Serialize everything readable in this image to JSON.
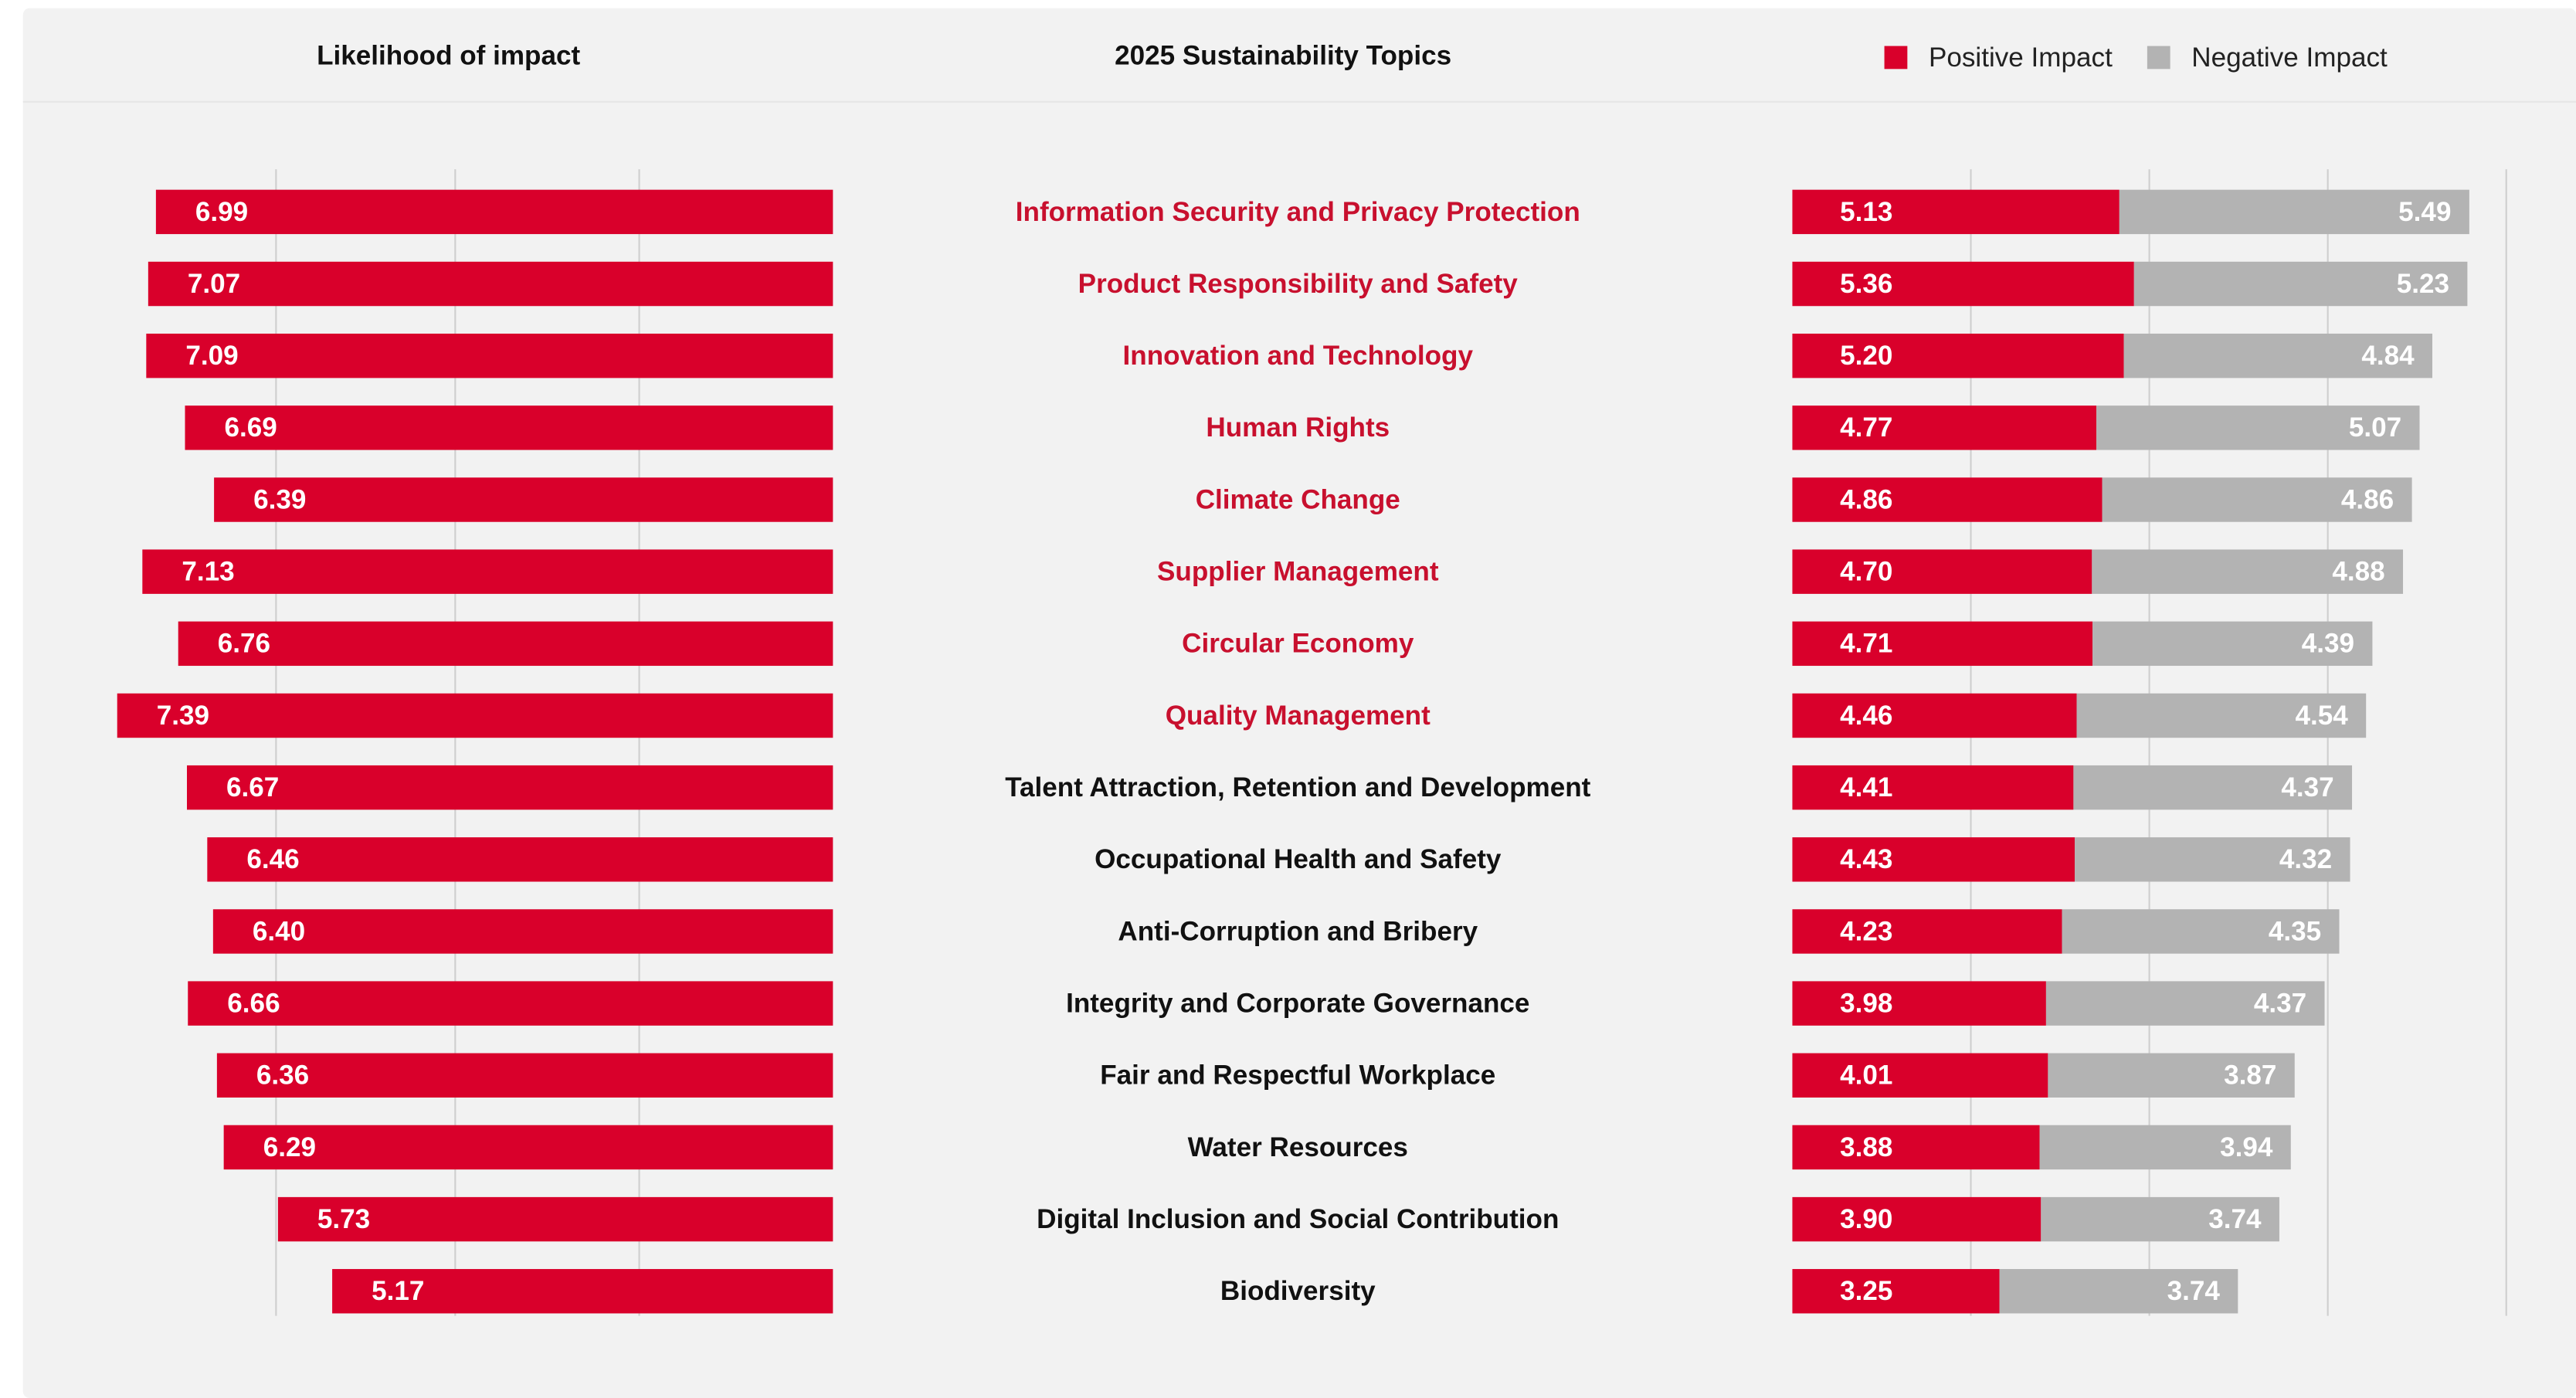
{
  "chart_data": [
    {
      "type": "bar",
      "orientation": "horizontal",
      "direction": "reversed",
      "title": "Likelihood of impact",
      "category_axis_label": "2025 Sustainability Topics",
      "categories": [
        "Information Security and Privacy Protection",
        "Product Responsibility and Safety",
        "Innovation and Technology",
        "Human Rights",
        "Climate Change",
        "Supplier Management",
        "Circular Economy",
        "Quality Management",
        "Talent Attraction, Retention and Development",
        "Occupational Health and Safety",
        "Anti-Corruption and Bribery",
        "Integrity and Corporate Governance",
        "Fair and Respectful Workplace",
        "Water Resources",
        "Digital Inclusion and Social Contribution",
        "Biodiversity"
      ],
      "category_colors": [
        "#c8102e",
        "#c8102e",
        "#c8102e",
        "#c8102e",
        "#c8102e",
        "#c8102e",
        "#c8102e",
        "#c8102e",
        "#111111",
        "#111111",
        "#111111",
        "#111111",
        "#111111",
        "#111111",
        "#111111",
        "#111111"
      ],
      "values": [
        6.99,
        7.07,
        7.09,
        6.69,
        6.39,
        7.13,
        6.76,
        7.39,
        6.67,
        6.46,
        6.4,
        6.66,
        6.36,
        6.29,
        5.73,
        5.17
      ],
      "value_labels": [
        "6.99",
        "7.07",
        "7.09",
        "6.69",
        "6.39",
        "7.13",
        "6.76",
        "7.39",
        "6.67",
        "6.46",
        "6.40",
        "6.66",
        "6.36",
        "6.29",
        "5.73",
        "5.17"
      ],
      "color": "#d9002b",
      "xlim": [
        0,
        8.6
      ],
      "xticks": [
        2,
        3.9,
        5.75
      ],
      "grid": true
    },
    {
      "type": "stacked_bar",
      "orientation": "horizontal",
      "series": [
        {
          "name": "Positive Impact",
          "color": "#d9002b",
          "values": [
            5.13,
            5.36,
            5.2,
            4.77,
            4.86,
            4.7,
            4.71,
            4.46,
            4.41,
            4.43,
            4.23,
            3.98,
            4.01,
            3.88,
            3.9,
            3.25
          ],
          "value_labels": [
            "5.13",
            "5.36",
            "5.20",
            "4.77",
            "4.86",
            "4.70",
            "4.71",
            "4.46",
            "4.41",
            "4.43",
            "4.23",
            "3.98",
            "4.01",
            "3.88",
            "3.90",
            "3.25"
          ]
        },
        {
          "name": "Negative Impact",
          "color": "#b3b3b3",
          "values": [
            5.49,
            5.23,
            4.84,
            5.07,
            4.86,
            4.88,
            4.39,
            4.54,
            4.37,
            4.32,
            4.35,
            4.37,
            3.87,
            3.94,
            3.74,
            3.74
          ],
          "value_labels": [
            "5.49",
            "5.23",
            "4.84",
            "5.07",
            "4.86",
            "4.88",
            "4.39",
            "4.54",
            "4.37",
            "4.32",
            "4.35",
            "4.37",
            "3.87",
            "3.94",
            "3.74",
            "3.74"
          ]
        }
      ],
      "xlim": [
        0,
        12
      ],
      "xticks": [
        2.8,
        5.6,
        8.4,
        11.2
      ],
      "grid": true,
      "legend": "top-right"
    }
  ]
}
